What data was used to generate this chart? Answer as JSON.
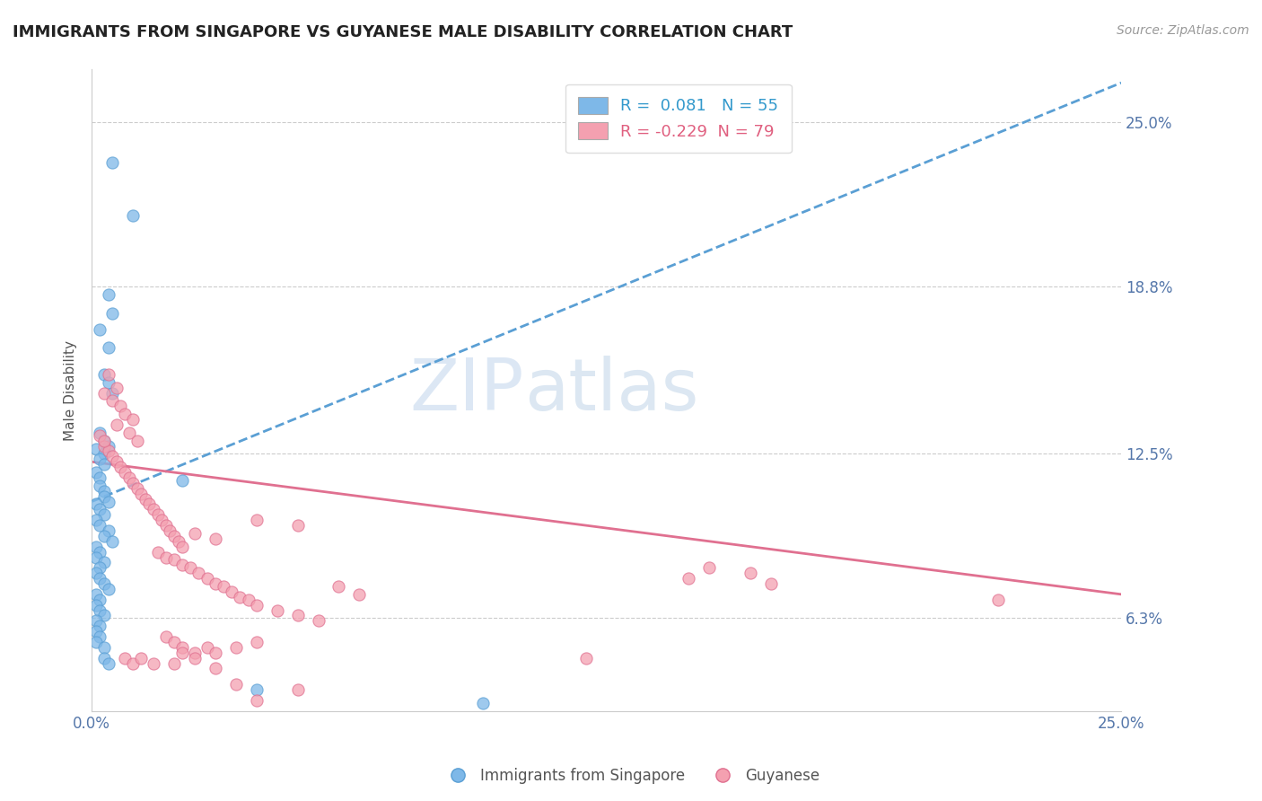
{
  "title": "IMMIGRANTS FROM SINGAPORE VS GUYANESE MALE DISABILITY CORRELATION CHART",
  "source": "Source: ZipAtlas.com",
  "ylabel": "Male Disability",
  "xlim": [
    0.0,
    0.25
  ],
  "ylim": [
    0.028,
    0.27
  ],
  "xtick_positions": [
    0.0,
    0.25
  ],
  "xtick_labels": [
    "0.0%",
    "25.0%"
  ],
  "ytick_positions": [
    0.063,
    0.125,
    0.188,
    0.25
  ],
  "ytick_labels": [
    "6.3%",
    "12.5%",
    "18.8%",
    "25.0%"
  ],
  "singapore_color": "#7EB8E8",
  "singapore_edge_color": "#5A9FD4",
  "guyanese_color": "#F4A0B0",
  "guyanese_edge_color": "#E07090",
  "sg_trend_color": "#5A9FD4",
  "gy_trend_color": "#E07090",
  "singapore_R": 0.081,
  "singapore_N": 55,
  "guyanese_R": -0.229,
  "guyanese_N": 79,
  "sg_trend_y0": 0.107,
  "sg_trend_y1": 0.265,
  "gy_trend_y0": 0.122,
  "gy_trend_y1": 0.072,
  "watermark_color": "#C5D8EE",
  "singapore_points": [
    [
      0.005,
      0.235
    ],
    [
      0.01,
      0.215
    ],
    [
      0.004,
      0.185
    ],
    [
      0.005,
      0.178
    ],
    [
      0.002,
      0.172
    ],
    [
      0.004,
      0.165
    ],
    [
      0.003,
      0.155
    ],
    [
      0.002,
      0.133
    ],
    [
      0.003,
      0.13
    ],
    [
      0.004,
      0.128
    ],
    [
      0.001,
      0.127
    ],
    [
      0.003,
      0.125
    ],
    [
      0.002,
      0.123
    ],
    [
      0.003,
      0.121
    ],
    [
      0.004,
      0.152
    ],
    [
      0.005,
      0.148
    ],
    [
      0.001,
      0.118
    ],
    [
      0.002,
      0.116
    ],
    [
      0.002,
      0.113
    ],
    [
      0.003,
      0.111
    ],
    [
      0.003,
      0.109
    ],
    [
      0.004,
      0.107
    ],
    [
      0.001,
      0.106
    ],
    [
      0.002,
      0.104
    ],
    [
      0.003,
      0.102
    ],
    [
      0.001,
      0.1
    ],
    [
      0.002,
      0.098
    ],
    [
      0.004,
      0.096
    ],
    [
      0.003,
      0.094
    ],
    [
      0.005,
      0.092
    ],
    [
      0.001,
      0.09
    ],
    [
      0.002,
      0.088
    ],
    [
      0.001,
      0.086
    ],
    [
      0.003,
      0.084
    ],
    [
      0.002,
      0.082
    ],
    [
      0.001,
      0.08
    ],
    [
      0.002,
      0.078
    ],
    [
      0.003,
      0.076
    ],
    [
      0.004,
      0.074
    ],
    [
      0.001,
      0.072
    ],
    [
      0.002,
      0.07
    ],
    [
      0.001,
      0.068
    ],
    [
      0.002,
      0.066
    ],
    [
      0.003,
      0.064
    ],
    [
      0.001,
      0.062
    ],
    [
      0.002,
      0.06
    ],
    [
      0.001,
      0.058
    ],
    [
      0.002,
      0.056
    ],
    [
      0.001,
      0.054
    ],
    [
      0.003,
      0.052
    ],
    [
      0.003,
      0.048
    ],
    [
      0.004,
      0.046
    ],
    [
      0.022,
      0.115
    ],
    [
      0.04,
      0.036
    ],
    [
      0.095,
      0.031
    ]
  ],
  "guyanese_points": [
    [
      0.004,
      0.155
    ],
    [
      0.006,
      0.15
    ],
    [
      0.003,
      0.148
    ],
    [
      0.005,
      0.145
    ],
    [
      0.007,
      0.143
    ],
    [
      0.008,
      0.14
    ],
    [
      0.01,
      0.138
    ],
    [
      0.006,
      0.136
    ],
    [
      0.009,
      0.133
    ],
    [
      0.011,
      0.13
    ],
    [
      0.003,
      0.128
    ],
    [
      0.004,
      0.126
    ],
    [
      0.005,
      0.124
    ],
    [
      0.006,
      0.122
    ],
    [
      0.007,
      0.12
    ],
    [
      0.008,
      0.118
    ],
    [
      0.009,
      0.116
    ],
    [
      0.01,
      0.114
    ],
    [
      0.011,
      0.112
    ],
    [
      0.012,
      0.11
    ],
    [
      0.013,
      0.108
    ],
    [
      0.014,
      0.106
    ],
    [
      0.015,
      0.104
    ],
    [
      0.016,
      0.102
    ],
    [
      0.017,
      0.1
    ],
    [
      0.018,
      0.098
    ],
    [
      0.019,
      0.096
    ],
    [
      0.02,
      0.094
    ],
    [
      0.021,
      0.092
    ],
    [
      0.022,
      0.09
    ],
    [
      0.016,
      0.088
    ],
    [
      0.018,
      0.086
    ],
    [
      0.02,
      0.085
    ],
    [
      0.022,
      0.083
    ],
    [
      0.024,
      0.082
    ],
    [
      0.026,
      0.08
    ],
    [
      0.028,
      0.078
    ],
    [
      0.03,
      0.076
    ],
    [
      0.032,
      0.075
    ],
    [
      0.034,
      0.073
    ],
    [
      0.036,
      0.071
    ],
    [
      0.038,
      0.07
    ],
    [
      0.04,
      0.068
    ],
    [
      0.045,
      0.066
    ],
    [
      0.05,
      0.064
    ],
    [
      0.055,
      0.062
    ],
    [
      0.025,
      0.095
    ],
    [
      0.03,
      0.093
    ],
    [
      0.04,
      0.1
    ],
    [
      0.05,
      0.098
    ],
    [
      0.002,
      0.132
    ],
    [
      0.003,
      0.13
    ],
    [
      0.06,
      0.075
    ],
    [
      0.065,
      0.072
    ],
    [
      0.018,
      0.056
    ],
    [
      0.02,
      0.054
    ],
    [
      0.022,
      0.052
    ],
    [
      0.025,
      0.05
    ],
    [
      0.028,
      0.052
    ],
    [
      0.03,
      0.05
    ],
    [
      0.035,
      0.052
    ],
    [
      0.04,
      0.054
    ],
    [
      0.008,
      0.048
    ],
    [
      0.01,
      0.046
    ],
    [
      0.012,
      0.048
    ],
    [
      0.015,
      0.046
    ],
    [
      0.02,
      0.046
    ],
    [
      0.022,
      0.05
    ],
    [
      0.025,
      0.048
    ],
    [
      0.03,
      0.044
    ],
    [
      0.15,
      0.082
    ],
    [
      0.16,
      0.08
    ],
    [
      0.145,
      0.078
    ],
    [
      0.165,
      0.076
    ],
    [
      0.035,
      0.038
    ],
    [
      0.05,
      0.036
    ],
    [
      0.04,
      0.032
    ],
    [
      0.12,
      0.048
    ],
    [
      0.22,
      0.07
    ]
  ]
}
